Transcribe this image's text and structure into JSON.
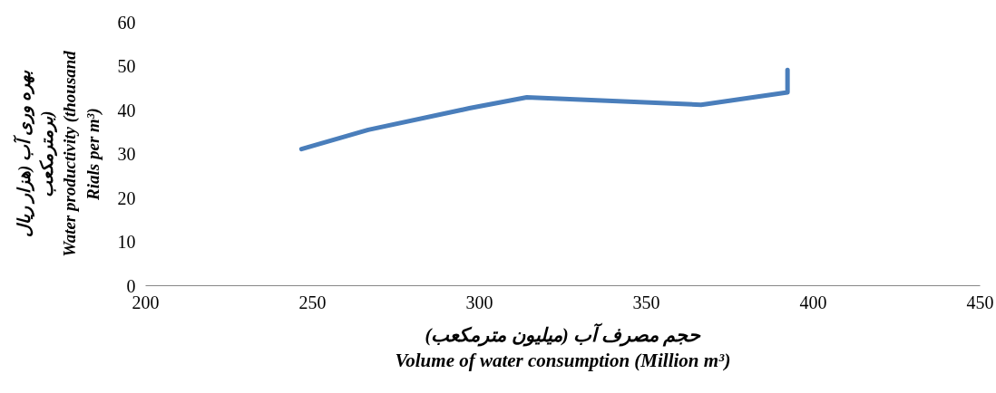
{
  "chart_data": {
    "type": "line",
    "xlabel": "حجم مصرف آب (میلیون مترمکعب)\nVolume of water consumption (Million m³)",
    "ylabel": "بهره وری آب (هزار ریال برمترمکعب)\nWater productivity (thousand Rials per m³)",
    "x": [
      246.7,
      266.7,
      297,
      314.2,
      366.4,
      392.3,
      392.3
    ],
    "series": [
      {
        "color": "#4a7ebb",
        "values": [
          31.1,
          35.5,
          40.4,
          42.9,
          41.2,
          44.0,
          49.1
        ]
      }
    ],
    "xlim": [
      200,
      450
    ],
    "xticks": [
      200,
      250,
      300,
      350,
      400,
      450
    ],
    "ylim": [
      0,
      60
    ],
    "yticks": [
      0,
      10,
      20,
      30,
      40,
      50,
      60
    ],
    "grid": false,
    "marker": "none",
    "line_style": "solid"
  }
}
